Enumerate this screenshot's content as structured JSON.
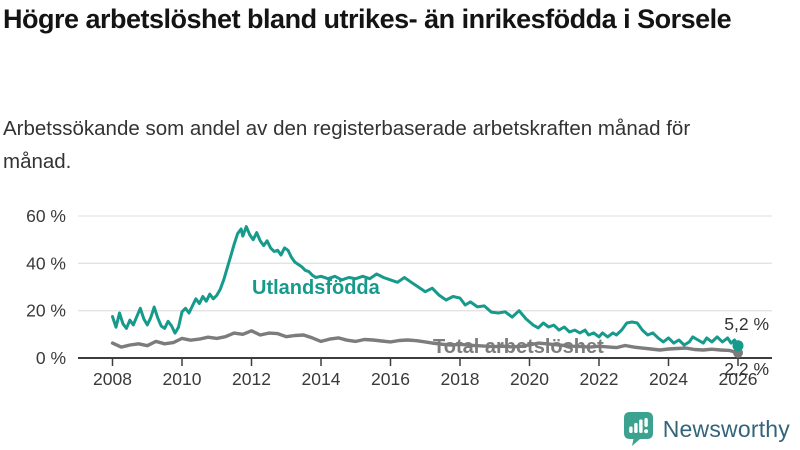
{
  "header": {
    "title": "Högre arbetslöshet bland utrikes- än inrikesfödda i Sorsele",
    "subtitle": "Arbetssökande som andel av den registerbaserade arbetskraften månad för månad."
  },
  "chart_data": {
    "type": "line",
    "title": "Högre arbetslöshet bland utrikes- än inrikesfödda i Sorsele",
    "subtitle": "Arbetssökande som andel av den registerbaserade arbetskraften månad för månad.",
    "unit": "%",
    "grid": "horizontal",
    "legend": "inline-labels",
    "xlim": [
      2007.7,
      2026.6
    ],
    "ylim": [
      0,
      62
    ],
    "x_ticks": [
      {
        "value": 2008,
        "label": "2008"
      },
      {
        "value": 2010,
        "label": "2010"
      },
      {
        "value": 2012,
        "label": "2012"
      },
      {
        "value": 2014,
        "label": "2014"
      },
      {
        "value": 2016,
        "label": "2016"
      },
      {
        "value": 2018,
        "label": "2018"
      },
      {
        "value": 2020,
        "label": "2020"
      },
      {
        "value": 2022,
        "label": "2022"
      },
      {
        "value": 2024,
        "label": "2024"
      },
      {
        "value": 2026,
        "label": "2026"
      }
    ],
    "y_ticks": [
      {
        "value": 0,
        "label": "0 %"
      },
      {
        "value": 20,
        "label": "20 %"
      },
      {
        "value": 40,
        "label": "40 %"
      },
      {
        "value": 60,
        "label": "60 %"
      }
    ],
    "series": [
      {
        "name": "Utlandsfödda",
        "color": "#169a8c",
        "end_value": 5.2,
        "end_label": "5,2 %",
        "points": [
          [
            2008.0,
            17.5
          ],
          [
            2008.1,
            13
          ],
          [
            2008.2,
            19
          ],
          [
            2008.3,
            14.5
          ],
          [
            2008.4,
            12.5
          ],
          [
            2008.5,
            16
          ],
          [
            2008.6,
            14
          ],
          [
            2008.7,
            17.5
          ],
          [
            2008.8,
            21
          ],
          [
            2008.9,
            16.5
          ],
          [
            2009.0,
            14
          ],
          [
            2009.1,
            17
          ],
          [
            2009.2,
            21.5
          ],
          [
            2009.3,
            17
          ],
          [
            2009.4,
            13.5
          ],
          [
            2009.5,
            12.5
          ],
          [
            2009.6,
            15.5
          ],
          [
            2009.7,
            13.5
          ],
          [
            2009.8,
            10.5
          ],
          [
            2009.9,
            13
          ],
          [
            2010.0,
            19.5
          ],
          [
            2010.1,
            21
          ],
          [
            2010.2,
            19
          ],
          [
            2010.3,
            22
          ],
          [
            2010.4,
            25
          ],
          [
            2010.5,
            23
          ],
          [
            2010.6,
            26
          ],
          [
            2010.7,
            24
          ],
          [
            2010.8,
            27
          ],
          [
            2010.9,
            25
          ],
          [
            2011.0,
            26.5
          ],
          [
            2011.1,
            29
          ],
          [
            2011.2,
            33
          ],
          [
            2011.3,
            38
          ],
          [
            2011.4,
            43
          ],
          [
            2011.5,
            48
          ],
          [
            2011.6,
            52.5
          ],
          [
            2011.7,
            54.5
          ],
          [
            2011.75,
            51.5
          ],
          [
            2011.85,
            55.5
          ],
          [
            2011.95,
            52
          ],
          [
            2012.05,
            50
          ],
          [
            2012.15,
            53
          ],
          [
            2012.25,
            49.5
          ],
          [
            2012.35,
            47.5
          ],
          [
            2012.45,
            49.5
          ],
          [
            2012.55,
            46.5
          ],
          [
            2012.65,
            45
          ],
          [
            2012.75,
            45.5
          ],
          [
            2012.85,
            43.5
          ],
          [
            2012.95,
            46.5
          ],
          [
            2013.05,
            45.5
          ],
          [
            2013.15,
            42.5
          ],
          [
            2013.25,
            40.5
          ],
          [
            2013.35,
            39.5
          ],
          [
            2013.45,
            38.5
          ],
          [
            2013.55,
            37
          ],
          [
            2013.65,
            36.5
          ],
          [
            2013.75,
            35
          ],
          [
            2013.85,
            34
          ],
          [
            2014.0,
            34.5
          ],
          [
            2014.2,
            33.5
          ],
          [
            2014.4,
            34.5
          ],
          [
            2014.6,
            33
          ],
          [
            2014.8,
            34
          ],
          [
            2015.0,
            33.5
          ],
          [
            2015.2,
            34.5
          ],
          [
            2015.4,
            33.5
          ],
          [
            2015.6,
            35.5
          ],
          [
            2015.8,
            34
          ],
          [
            2016.0,
            33
          ],
          [
            2016.2,
            32
          ],
          [
            2016.4,
            34
          ],
          [
            2016.6,
            32
          ],
          [
            2016.8,
            30
          ],
          [
            2017.0,
            28
          ],
          [
            2017.2,
            29.5
          ],
          [
            2017.4,
            26.5
          ],
          [
            2017.6,
            24.5
          ],
          [
            2017.8,
            26
          ],
          [
            2018.0,
            25.3
          ],
          [
            2018.15,
            22.4
          ],
          [
            2018.3,
            23.7
          ],
          [
            2018.5,
            21.6
          ],
          [
            2018.7,
            22
          ],
          [
            2018.9,
            19.4
          ],
          [
            2019.1,
            19
          ],
          [
            2019.3,
            19.5
          ],
          [
            2019.5,
            17.3
          ],
          [
            2019.7,
            20
          ],
          [
            2019.9,
            16.5
          ],
          [
            2020.1,
            14
          ],
          [
            2020.25,
            12.7
          ],
          [
            2020.4,
            14.8
          ],
          [
            2020.55,
            13.1
          ],
          [
            2020.7,
            13.9
          ],
          [
            2020.85,
            11.8
          ],
          [
            2021.0,
            13.1
          ],
          [
            2021.15,
            11
          ],
          [
            2021.3,
            11.8
          ],
          [
            2021.45,
            10.6
          ],
          [
            2021.6,
            11.8
          ],
          [
            2021.7,
            9.7
          ],
          [
            2021.85,
            10.6
          ],
          [
            2022.0,
            8.9
          ],
          [
            2022.1,
            10.6
          ],
          [
            2022.25,
            8.9
          ],
          [
            2022.4,
            10.6
          ],
          [
            2022.5,
            9.7
          ],
          [
            2022.65,
            11.8
          ],
          [
            2022.8,
            14.8
          ],
          [
            2022.95,
            15.2
          ],
          [
            2023.1,
            14.8
          ],
          [
            2023.25,
            11.8
          ],
          [
            2023.4,
            9.7
          ],
          [
            2023.55,
            10.6
          ],
          [
            2023.7,
            8.5
          ],
          [
            2023.85,
            6.8
          ],
          [
            2024.0,
            8.5
          ],
          [
            2024.15,
            6.3
          ],
          [
            2024.3,
            7.6
          ],
          [
            2024.45,
            5.5
          ],
          [
            2024.6,
            6.8
          ],
          [
            2024.7,
            8.9
          ],
          [
            2024.85,
            7.6
          ],
          [
            2025.0,
            6.3
          ],
          [
            2025.1,
            8.5
          ],
          [
            2025.25,
            6.8
          ],
          [
            2025.4,
            8.9
          ],
          [
            2025.55,
            6.8
          ],
          [
            2025.7,
            8.5
          ],
          [
            2025.8,
            6.3
          ],
          [
            2025.9,
            7.6
          ],
          [
            2026.0,
            5.2
          ]
        ]
      },
      {
        "name": "Total arbetslöshet",
        "color": "#7c7c7c",
        "end_value": 2.2,
        "end_label": "2,2 %",
        "points": [
          [
            2008.0,
            6.3
          ],
          [
            2008.25,
            4.6
          ],
          [
            2008.5,
            5.5
          ],
          [
            2008.75,
            6
          ],
          [
            2009.0,
            5.2
          ],
          [
            2009.25,
            7
          ],
          [
            2009.5,
            6
          ],
          [
            2009.75,
            6.5
          ],
          [
            2010.0,
            8.3
          ],
          [
            2010.25,
            7.5
          ],
          [
            2010.5,
            8
          ],
          [
            2010.75,
            8.8
          ],
          [
            2011.0,
            8.3
          ],
          [
            2011.25,
            9
          ],
          [
            2011.5,
            10.5
          ],
          [
            2011.75,
            10
          ],
          [
            2012.0,
            11.5
          ],
          [
            2012.25,
            9.7
          ],
          [
            2012.5,
            10.5
          ],
          [
            2012.75,
            10.3
          ],
          [
            2013.0,
            9
          ],
          [
            2013.25,
            9.5
          ],
          [
            2013.5,
            9.7
          ],
          [
            2013.75,
            8.5
          ],
          [
            2014.0,
            7
          ],
          [
            2014.25,
            8
          ],
          [
            2014.5,
            8.5
          ],
          [
            2014.75,
            7.5
          ],
          [
            2015.0,
            7
          ],
          [
            2015.25,
            7.8
          ],
          [
            2015.5,
            7.6
          ],
          [
            2015.75,
            7.2
          ],
          [
            2016.0,
            6.8
          ],
          [
            2016.25,
            7.4
          ],
          [
            2016.5,
            7.6
          ],
          [
            2016.75,
            7.3
          ],
          [
            2017.0,
            6.8
          ],
          [
            2017.25,
            6.2
          ],
          [
            2017.5,
            5.8
          ],
          [
            2017.75,
            5.5
          ],
          [
            2018.0,
            5.8
          ],
          [
            2018.25,
            5.4
          ],
          [
            2018.5,
            5.2
          ],
          [
            2018.75,
            5
          ],
          [
            2019.0,
            4.8
          ],
          [
            2019.25,
            5
          ],
          [
            2019.5,
            4.7
          ],
          [
            2019.75,
            5
          ],
          [
            2020.0,
            5.5
          ],
          [
            2020.25,
            6.3
          ],
          [
            2020.5,
            6
          ],
          [
            2020.75,
            5.6
          ],
          [
            2021.0,
            5.3
          ],
          [
            2021.25,
            5
          ],
          [
            2021.5,
            4.8
          ],
          [
            2021.75,
            4.6
          ],
          [
            2022.0,
            5
          ],
          [
            2022.25,
            4.7
          ],
          [
            2022.5,
            4.4
          ],
          [
            2022.75,
            5.3
          ],
          [
            2023.0,
            4.6
          ],
          [
            2023.25,
            4.2
          ],
          [
            2023.5,
            3.8
          ],
          [
            2023.75,
            3.4
          ],
          [
            2024.0,
            3.8
          ],
          [
            2024.25,
            4
          ],
          [
            2024.5,
            4.2
          ],
          [
            2024.75,
            3.6
          ],
          [
            2025.0,
            3.4
          ],
          [
            2025.25,
            3.7
          ],
          [
            2025.5,
            3.4
          ],
          [
            2025.75,
            3.2
          ],
          [
            2026.0,
            2.2
          ]
        ]
      }
    ]
  },
  "colors": {
    "utlandsfodda": "#169a8c",
    "total": "#7c7c7c",
    "axis": "#3d3d3d",
    "gridline": "#e3e3e3",
    "tick_text": "#3a3a3a",
    "logo_icon": "#3aa28f",
    "wordmark": "#33647a"
  },
  "footer": {
    "brand": "Newsworthy"
  }
}
